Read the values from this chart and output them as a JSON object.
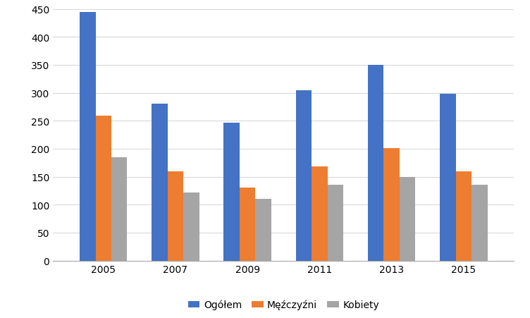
{
  "years": [
    "2005",
    "2007",
    "2009",
    "2011",
    "2013",
    "2015"
  ],
  "ogolем": [
    445,
    281,
    246,
    305,
    350,
    298
  ],
  "mezczyzni": [
    259,
    159,
    131,
    168,
    201,
    160
  ],
  "kobiety": [
    185,
    122,
    111,
    136,
    149,
    136
  ],
  "colors": {
    "ogolем": "#4472C4",
    "mezczyzni": "#ED7D31",
    "kobiety": "#A5A5A5"
  },
  "legend_labels": [
    "Ogółem",
    "Męźczyźni",
    "Kobiety"
  ],
  "ylim": [
    0,
    450
  ],
  "yticks": [
    0,
    50,
    100,
    150,
    200,
    250,
    300,
    350,
    400,
    450
  ],
  "bar_width": 0.22,
  "background_color": "#ffffff",
  "grid_color": "#d9d9d9"
}
